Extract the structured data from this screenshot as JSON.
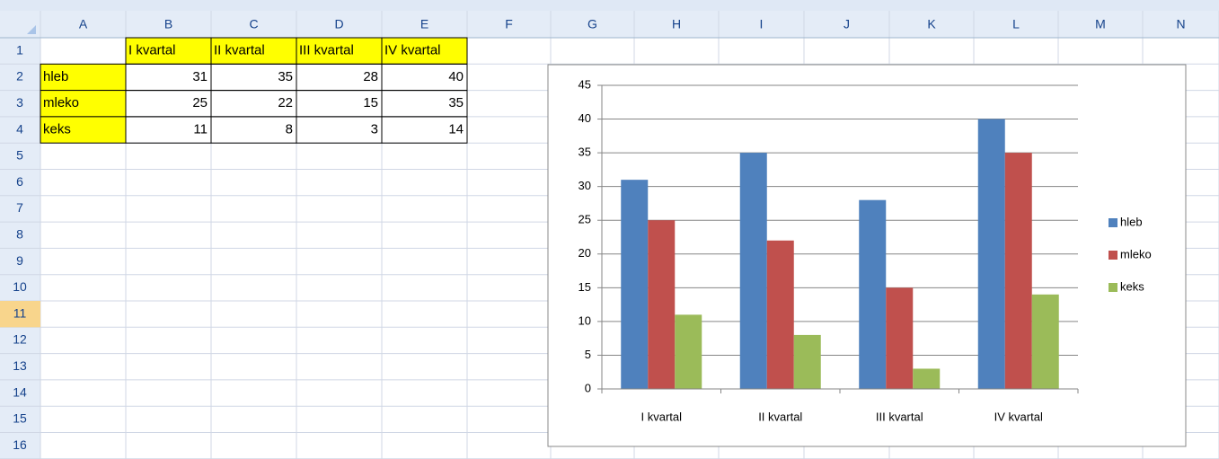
{
  "sheet": {
    "columns": [
      "A",
      "B",
      "C",
      "D",
      "E",
      "F",
      "G",
      "H",
      "I",
      "J",
      "K",
      "L",
      "M",
      "N"
    ],
    "row_numbers": [
      1,
      2,
      3,
      4,
      5,
      6,
      7,
      8,
      9,
      10,
      11,
      12,
      13,
      14,
      15,
      16
    ],
    "column_labels": [
      "I kvartal",
      "II kvartal",
      "III kvartal",
      "IV kvartal"
    ],
    "rows": [
      {
        "label": "hleb",
        "values": [
          31,
          35,
          28,
          40
        ]
      },
      {
        "label": "mleko",
        "values": [
          25,
          22,
          15,
          35
        ]
      },
      {
        "label": "keks",
        "values": [
          11,
          8,
          3,
          14
        ]
      }
    ]
  },
  "chart_data": {
    "type": "bar",
    "categories": [
      "I kvartal",
      "II kvartal",
      "III kvartal",
      "IV kvartal"
    ],
    "series": [
      {
        "name": "hleb",
        "color": "#4f81bd",
        "values": [
          31,
          35,
          28,
          40
        ]
      },
      {
        "name": "mleko",
        "color": "#c0504d",
        "values": [
          25,
          22,
          15,
          35
        ]
      },
      {
        "name": "keks",
        "color": "#9bbb59",
        "values": [
          11,
          8,
          3,
          14
        ]
      }
    ],
    "ylim": [
      0,
      45
    ],
    "yticks": [
      0,
      5,
      10,
      15,
      20,
      25,
      30,
      35,
      40,
      45
    ],
    "grid": true,
    "legend": "right"
  }
}
